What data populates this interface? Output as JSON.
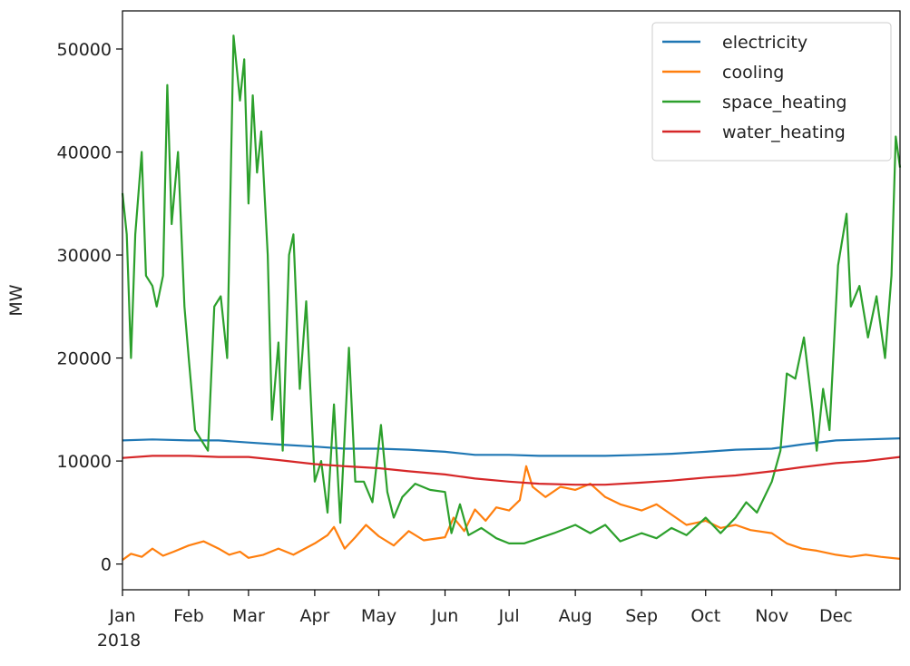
{
  "chart_data": {
    "type": "line",
    "title": "",
    "xlabel": "",
    "ylabel": "MW",
    "x_year_label": "2018",
    "x_range": [
      "2018-01-01",
      "2018-12-31"
    ],
    "ylim": [
      -2500,
      53700
    ],
    "yticks": [
      0,
      10000,
      20000,
      30000,
      40000,
      50000
    ],
    "ytick_labels": [
      "0",
      "10000",
      "20000",
      "30000",
      "40000",
      "50000"
    ],
    "xticks": [
      {
        "label": "Jan",
        "date": "2018-01-01"
      },
      {
        "label": "Feb",
        "date": "2018-02-01"
      },
      {
        "label": "Mar",
        "date": "2018-03-01"
      },
      {
        "label": "Apr",
        "date": "2018-04-01"
      },
      {
        "label": "May",
        "date": "2018-05-01"
      },
      {
        "label": "Jun",
        "date": "2018-06-01"
      },
      {
        "label": "Jul",
        "date": "2018-07-01"
      },
      {
        "label": "Aug",
        "date": "2018-08-01"
      },
      {
        "label": "Sep",
        "date": "2018-09-01"
      },
      {
        "label": "Oct",
        "date": "2018-10-01"
      },
      {
        "label": "Nov",
        "date": "2018-11-01"
      },
      {
        "label": "Dec",
        "date": "2018-12-01"
      }
    ],
    "grid": false,
    "legend_position": "top-right",
    "series": [
      {
        "name": "electricity",
        "color": "#1f77b4",
        "points": [
          [
            "2018-01-01",
            12000
          ],
          [
            "2018-01-15",
            12100
          ],
          [
            "2018-02-01",
            12000
          ],
          [
            "2018-02-15",
            12000
          ],
          [
            "2018-03-01",
            11800
          ],
          [
            "2018-03-15",
            11600
          ],
          [
            "2018-04-01",
            11400
          ],
          [
            "2018-04-15",
            11200
          ],
          [
            "2018-05-01",
            11200
          ],
          [
            "2018-05-15",
            11100
          ],
          [
            "2018-06-01",
            10900
          ],
          [
            "2018-06-15",
            10600
          ],
          [
            "2018-07-01",
            10600
          ],
          [
            "2018-07-15",
            10500
          ],
          [
            "2018-08-01",
            10500
          ],
          [
            "2018-08-15",
            10500
          ],
          [
            "2018-09-01",
            10600
          ],
          [
            "2018-09-15",
            10700
          ],
          [
            "2018-10-01",
            10900
          ],
          [
            "2018-10-15",
            11100
          ],
          [
            "2018-11-01",
            11200
          ],
          [
            "2018-11-15",
            11600
          ],
          [
            "2018-12-01",
            12000
          ],
          [
            "2018-12-15",
            12100
          ],
          [
            "2018-12-31",
            12200
          ]
        ]
      },
      {
        "name": "cooling",
        "color": "#ff7f0e",
        "points": [
          [
            "2018-01-01",
            400
          ],
          [
            "2018-01-05",
            1000
          ],
          [
            "2018-01-10",
            700
          ],
          [
            "2018-01-15",
            1500
          ],
          [
            "2018-01-20",
            800
          ],
          [
            "2018-01-25",
            1200
          ],
          [
            "2018-02-01",
            1800
          ],
          [
            "2018-02-08",
            2200
          ],
          [
            "2018-02-15",
            1500
          ],
          [
            "2018-02-20",
            900
          ],
          [
            "2018-02-25",
            1200
          ],
          [
            "2018-03-01",
            600
          ],
          [
            "2018-03-08",
            900
          ],
          [
            "2018-03-15",
            1500
          ],
          [
            "2018-03-22",
            900
          ],
          [
            "2018-04-01",
            2000
          ],
          [
            "2018-04-07",
            2800
          ],
          [
            "2018-04-10",
            3600
          ],
          [
            "2018-04-15",
            1500
          ],
          [
            "2018-04-20",
            2600
          ],
          [
            "2018-04-25",
            3800
          ],
          [
            "2018-05-01",
            2700
          ],
          [
            "2018-05-08",
            1800
          ],
          [
            "2018-05-15",
            3200
          ],
          [
            "2018-05-22",
            2300
          ],
          [
            "2018-06-01",
            2600
          ],
          [
            "2018-06-05",
            4500
          ],
          [
            "2018-06-10",
            3200
          ],
          [
            "2018-06-15",
            5300
          ],
          [
            "2018-06-20",
            4200
          ],
          [
            "2018-06-25",
            5500
          ],
          [
            "2018-07-01",
            5200
          ],
          [
            "2018-07-06",
            6200
          ],
          [
            "2018-07-09",
            9500
          ],
          [
            "2018-07-12",
            7500
          ],
          [
            "2018-07-18",
            6500
          ],
          [
            "2018-07-25",
            7500
          ],
          [
            "2018-08-01",
            7200
          ],
          [
            "2018-08-08",
            7800
          ],
          [
            "2018-08-15",
            6500
          ],
          [
            "2018-08-22",
            5800
          ],
          [
            "2018-09-01",
            5200
          ],
          [
            "2018-09-08",
            5800
          ],
          [
            "2018-09-15",
            4800
          ],
          [
            "2018-09-22",
            3800
          ],
          [
            "2018-10-01",
            4200
          ],
          [
            "2018-10-08",
            3500
          ],
          [
            "2018-10-15",
            3800
          ],
          [
            "2018-10-22",
            3300
          ],
          [
            "2018-11-01",
            3000
          ],
          [
            "2018-11-08",
            2000
          ],
          [
            "2018-11-15",
            1500
          ],
          [
            "2018-11-22",
            1300
          ],
          [
            "2018-12-01",
            900
          ],
          [
            "2018-12-08",
            700
          ],
          [
            "2018-12-15",
            900
          ],
          [
            "2018-12-22",
            700
          ],
          [
            "2018-12-31",
            500
          ]
        ]
      },
      {
        "name": "space_heating",
        "color": "#2ca02c",
        "points": [
          [
            "2018-01-01",
            36000
          ],
          [
            "2018-01-03",
            32000
          ],
          [
            "2018-01-05",
            20000
          ],
          [
            "2018-01-07",
            32000
          ],
          [
            "2018-01-10",
            40000
          ],
          [
            "2018-01-12",
            28000
          ],
          [
            "2018-01-15",
            27000
          ],
          [
            "2018-01-17",
            25000
          ],
          [
            "2018-01-20",
            28000
          ],
          [
            "2018-01-22",
            46500
          ],
          [
            "2018-01-24",
            33000
          ],
          [
            "2018-01-27",
            40000
          ],
          [
            "2018-01-30",
            25000
          ],
          [
            "2018-02-01",
            20000
          ],
          [
            "2018-02-04",
            13000
          ],
          [
            "2018-02-07",
            12000
          ],
          [
            "2018-02-10",
            11000
          ],
          [
            "2018-02-13",
            25000
          ],
          [
            "2018-02-16",
            26000
          ],
          [
            "2018-02-19",
            20000
          ],
          [
            "2018-02-22",
            51300
          ],
          [
            "2018-02-25",
            45000
          ],
          [
            "2018-02-27",
            49000
          ],
          [
            "2018-03-01",
            35000
          ],
          [
            "2018-03-03",
            45500
          ],
          [
            "2018-03-05",
            38000
          ],
          [
            "2018-03-07",
            42000
          ],
          [
            "2018-03-10",
            30000
          ],
          [
            "2018-03-12",
            14000
          ],
          [
            "2018-03-15",
            21500
          ],
          [
            "2018-03-17",
            11000
          ],
          [
            "2018-03-20",
            30000
          ],
          [
            "2018-03-22",
            32000
          ],
          [
            "2018-03-25",
            17000
          ],
          [
            "2018-03-28",
            25500
          ],
          [
            "2018-04-01",
            8000
          ],
          [
            "2018-04-04",
            10000
          ],
          [
            "2018-04-07",
            5000
          ],
          [
            "2018-04-10",
            15500
          ],
          [
            "2018-04-13",
            4000
          ],
          [
            "2018-04-17",
            21000
          ],
          [
            "2018-04-20",
            8000
          ],
          [
            "2018-04-24",
            8000
          ],
          [
            "2018-04-28",
            6000
          ],
          [
            "2018-05-02",
            13500
          ],
          [
            "2018-05-05",
            7000
          ],
          [
            "2018-05-08",
            4500
          ],
          [
            "2018-05-12",
            6500
          ],
          [
            "2018-05-18",
            7800
          ],
          [
            "2018-05-25",
            7200
          ],
          [
            "2018-06-01",
            7000
          ],
          [
            "2018-06-04",
            3000
          ],
          [
            "2018-06-08",
            5800
          ],
          [
            "2018-06-12",
            2800
          ],
          [
            "2018-06-18",
            3500
          ],
          [
            "2018-06-25",
            2500
          ],
          [
            "2018-07-01",
            2000
          ],
          [
            "2018-07-08",
            2000
          ],
          [
            "2018-07-15",
            2500
          ],
          [
            "2018-07-22",
            3000
          ],
          [
            "2018-08-01",
            3800
          ],
          [
            "2018-08-08",
            3000
          ],
          [
            "2018-08-15",
            3800
          ],
          [
            "2018-08-22",
            2200
          ],
          [
            "2018-09-01",
            3000
          ],
          [
            "2018-09-08",
            2500
          ],
          [
            "2018-09-15",
            3500
          ],
          [
            "2018-09-22",
            2800
          ],
          [
            "2018-10-01",
            4500
          ],
          [
            "2018-10-08",
            3000
          ],
          [
            "2018-10-15",
            4500
          ],
          [
            "2018-10-20",
            6000
          ],
          [
            "2018-10-25",
            5000
          ],
          [
            "2018-11-01",
            8000
          ],
          [
            "2018-11-05",
            11000
          ],
          [
            "2018-11-08",
            18500
          ],
          [
            "2018-11-12",
            18000
          ],
          [
            "2018-11-16",
            22000
          ],
          [
            "2018-11-20",
            15000
          ],
          [
            "2018-11-22",
            11000
          ],
          [
            "2018-11-25",
            17000
          ],
          [
            "2018-11-28",
            13000
          ],
          [
            "2018-12-02",
            29000
          ],
          [
            "2018-12-06",
            34000
          ],
          [
            "2018-12-08",
            25000
          ],
          [
            "2018-12-12",
            27000
          ],
          [
            "2018-12-16",
            22000
          ],
          [
            "2018-12-20",
            26000
          ],
          [
            "2018-12-24",
            20000
          ],
          [
            "2018-12-27",
            28000
          ],
          [
            "2018-12-29",
            41500
          ],
          [
            "2018-12-31",
            38500
          ]
        ]
      },
      {
        "name": "water_heating",
        "color": "#d62728",
        "points": [
          [
            "2018-01-01",
            10300
          ],
          [
            "2018-01-15",
            10500
          ],
          [
            "2018-02-01",
            10500
          ],
          [
            "2018-02-15",
            10400
          ],
          [
            "2018-03-01",
            10400
          ],
          [
            "2018-03-15",
            10100
          ],
          [
            "2018-04-01",
            9700
          ],
          [
            "2018-04-15",
            9500
          ],
          [
            "2018-05-01",
            9300
          ],
          [
            "2018-05-15",
            9000
          ],
          [
            "2018-06-01",
            8700
          ],
          [
            "2018-06-15",
            8300
          ],
          [
            "2018-07-01",
            8000
          ],
          [
            "2018-07-15",
            7800
          ],
          [
            "2018-08-01",
            7700
          ],
          [
            "2018-08-15",
            7700
          ],
          [
            "2018-09-01",
            7900
          ],
          [
            "2018-09-15",
            8100
          ],
          [
            "2018-10-01",
            8400
          ],
          [
            "2018-10-15",
            8600
          ],
          [
            "2018-11-01",
            9000
          ],
          [
            "2018-11-15",
            9400
          ],
          [
            "2018-12-01",
            9800
          ],
          [
            "2018-12-15",
            10000
          ],
          [
            "2018-12-31",
            10400
          ]
        ]
      }
    ]
  }
}
